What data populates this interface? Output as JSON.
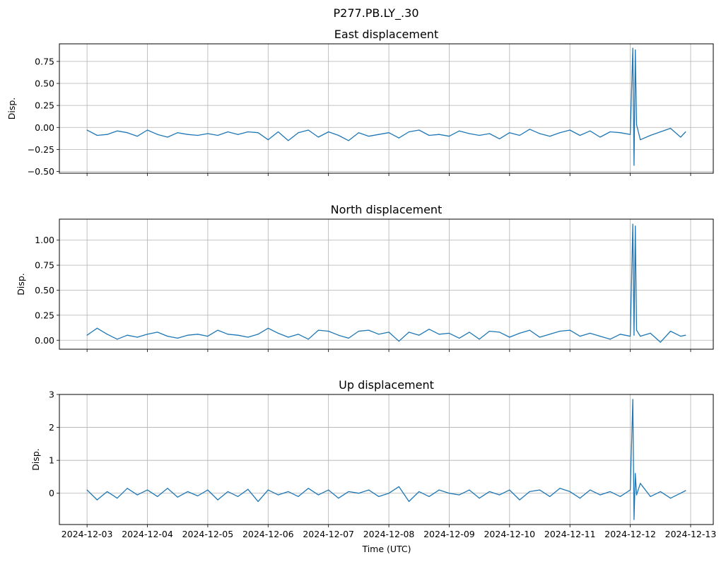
{
  "figure": {
    "suptitle": "P277.PB.LY_.30",
    "xlabel": "Time (UTC)"
  },
  "colors": {
    "line": "#1f77b4",
    "grid": "#b0b0b0",
    "axes": "#000000"
  },
  "chart_data": [
    {
      "type": "line",
      "title": "East displacement",
      "ylabel": "Disp.",
      "xlim": [
        "2024-12-02T13:00",
        "2024-12-13T09:00"
      ],
      "ylim": [
        -0.52,
        0.95
      ],
      "yticks": [
        -0.5,
        -0.25,
        0.0,
        0.25,
        0.5,
        0.75
      ],
      "ytick_labels": [
        "−0.50",
        "−0.25",
        "0.00",
        "0.25",
        "0.50",
        "0.75"
      ],
      "grid": true,
      "series": [
        {
          "x": [
            "2024-12-03T00:00",
            "2024-12-03T04:00",
            "2024-12-03T08:00",
            "2024-12-03T12:00",
            "2024-12-03T16:00",
            "2024-12-03T20:00",
            "2024-12-04T00:00",
            "2024-12-04T04:00",
            "2024-12-04T08:00",
            "2024-12-04T12:00",
            "2024-12-04T16:00",
            "2024-12-04T20:00",
            "2024-12-05T00:00",
            "2024-12-05T04:00",
            "2024-12-05T08:00",
            "2024-12-05T12:00",
            "2024-12-05T16:00",
            "2024-12-05T20:00",
            "2024-12-06T00:00",
            "2024-12-06T04:00",
            "2024-12-06T08:00",
            "2024-12-06T12:00",
            "2024-12-06T16:00",
            "2024-12-06T20:00",
            "2024-12-07T00:00",
            "2024-12-07T04:00",
            "2024-12-07T08:00",
            "2024-12-07T12:00",
            "2024-12-07T16:00",
            "2024-12-07T20:00",
            "2024-12-08T00:00",
            "2024-12-08T04:00",
            "2024-12-08T08:00",
            "2024-12-08T12:00",
            "2024-12-08T16:00",
            "2024-12-08T20:00",
            "2024-12-09T00:00",
            "2024-12-09T04:00",
            "2024-12-09T08:00",
            "2024-12-09T12:00",
            "2024-12-09T16:00",
            "2024-12-09T20:00",
            "2024-12-10T00:00",
            "2024-12-10T04:00",
            "2024-12-10T08:00",
            "2024-12-10T12:00",
            "2024-12-10T16:00",
            "2024-12-10T20:00",
            "2024-12-11T00:00",
            "2024-12-11T04:00",
            "2024-12-11T08:00",
            "2024-12-11T12:00",
            "2024-12-11T16:00",
            "2024-12-11T20:00",
            "2024-12-12T00:00",
            "2024-12-12T01:00",
            "2024-12-12T01:30",
            "2024-12-12T02:00",
            "2024-12-12T02:30",
            "2024-12-12T04:00",
            "2024-12-12T08:00",
            "2024-12-12T12:00",
            "2024-12-12T16:00",
            "2024-12-12T20:00",
            "2024-12-12T22:00"
          ],
          "y": [
            -0.03,
            -0.09,
            -0.08,
            -0.04,
            -0.06,
            -0.1,
            -0.03,
            -0.08,
            -0.11,
            -0.06,
            -0.08,
            -0.09,
            -0.07,
            -0.09,
            -0.05,
            -0.08,
            -0.05,
            -0.06,
            -0.14,
            -0.05,
            -0.15,
            -0.06,
            -0.03,
            -0.11,
            -0.05,
            -0.09,
            -0.15,
            -0.06,
            -0.1,
            -0.08,
            -0.06,
            -0.12,
            -0.05,
            -0.03,
            -0.09,
            -0.08,
            -0.1,
            -0.04,
            -0.07,
            -0.09,
            -0.07,
            -0.13,
            -0.06,
            -0.09,
            -0.02,
            -0.07,
            -0.1,
            -0.06,
            -0.03,
            -0.09,
            -0.04,
            -0.11,
            -0.05,
            -0.06,
            -0.08,
            0.9,
            -0.43,
            0.88,
            0.03,
            -0.14,
            -0.09,
            -0.05,
            -0.01,
            -0.11,
            -0.05
          ]
        }
      ]
    },
    {
      "type": "line",
      "title": "North displacement",
      "ylabel": "Disp.",
      "xlim": [
        "2024-12-02T13:00",
        "2024-12-13T09:00"
      ],
      "ylim": [
        -0.09,
        1.21
      ],
      "yticks": [
        0.0,
        0.25,
        0.5,
        0.75,
        1.0
      ],
      "ytick_labels": [
        "0.00",
        "0.25",
        "0.50",
        "0.75",
        "1.00"
      ],
      "grid": true,
      "series": [
        {
          "x": [
            "2024-12-03T00:00",
            "2024-12-03T04:00",
            "2024-12-03T08:00",
            "2024-12-03T12:00",
            "2024-12-03T16:00",
            "2024-12-03T20:00",
            "2024-12-04T00:00",
            "2024-12-04T04:00",
            "2024-12-04T08:00",
            "2024-12-04T12:00",
            "2024-12-04T16:00",
            "2024-12-04T20:00",
            "2024-12-05T00:00",
            "2024-12-05T04:00",
            "2024-12-05T08:00",
            "2024-12-05T12:00",
            "2024-12-05T16:00",
            "2024-12-05T20:00",
            "2024-12-06T00:00",
            "2024-12-06T04:00",
            "2024-12-06T08:00",
            "2024-12-06T12:00",
            "2024-12-06T16:00",
            "2024-12-06T20:00",
            "2024-12-07T00:00",
            "2024-12-07T04:00",
            "2024-12-07T08:00",
            "2024-12-07T12:00",
            "2024-12-07T16:00",
            "2024-12-07T20:00",
            "2024-12-08T00:00",
            "2024-12-08T04:00",
            "2024-12-08T08:00",
            "2024-12-08T12:00",
            "2024-12-08T16:00",
            "2024-12-08T20:00",
            "2024-12-09T00:00",
            "2024-12-09T04:00",
            "2024-12-09T08:00",
            "2024-12-09T12:00",
            "2024-12-09T16:00",
            "2024-12-09T20:00",
            "2024-12-10T00:00",
            "2024-12-10T04:00",
            "2024-12-10T08:00",
            "2024-12-10T12:00",
            "2024-12-10T16:00",
            "2024-12-10T20:00",
            "2024-12-11T00:00",
            "2024-12-11T04:00",
            "2024-12-11T08:00",
            "2024-12-11T12:00",
            "2024-12-11T16:00",
            "2024-12-11T20:00",
            "2024-12-12T00:00",
            "2024-12-12T01:00",
            "2024-12-12T01:30",
            "2024-12-12T02:00",
            "2024-12-12T02:30",
            "2024-12-12T04:00",
            "2024-12-12T08:00",
            "2024-12-12T12:00",
            "2024-12-12T16:00",
            "2024-12-12T20:00",
            "2024-12-12T22:00"
          ],
          "y": [
            0.05,
            0.12,
            0.06,
            0.01,
            0.05,
            0.03,
            0.06,
            0.08,
            0.04,
            0.02,
            0.05,
            0.06,
            0.04,
            0.1,
            0.06,
            0.05,
            0.03,
            0.06,
            0.12,
            0.07,
            0.03,
            0.06,
            0.01,
            0.1,
            0.09,
            0.05,
            0.02,
            0.09,
            0.1,
            0.06,
            0.08,
            -0.01,
            0.08,
            0.05,
            0.11,
            0.06,
            0.07,
            0.02,
            0.08,
            0.01,
            0.09,
            0.08,
            0.03,
            0.07,
            0.1,
            0.03,
            0.06,
            0.09,
            0.1,
            0.04,
            0.07,
            0.04,
            0.01,
            0.06,
            0.04,
            1.16,
            0.05,
            1.14,
            0.1,
            0.04,
            0.07,
            -0.02,
            0.09,
            0.04,
            0.05
          ]
        }
      ]
    },
    {
      "type": "line",
      "title": "Up displacement",
      "ylabel": "Disp.",
      "xlim": [
        "2024-12-02T13:00",
        "2024-12-13T09:00"
      ],
      "ylim": [
        -0.95,
        3.0
      ],
      "yticks": [
        0,
        1,
        2,
        3
      ],
      "ytick_labels": [
        "0",
        "1",
        "2",
        "3"
      ],
      "grid": true,
      "series": [
        {
          "x": [
            "2024-12-03T00:00",
            "2024-12-03T04:00",
            "2024-12-03T08:00",
            "2024-12-03T12:00",
            "2024-12-03T16:00",
            "2024-12-03T20:00",
            "2024-12-04T00:00",
            "2024-12-04T04:00",
            "2024-12-04T08:00",
            "2024-12-04T12:00",
            "2024-12-04T16:00",
            "2024-12-04T20:00",
            "2024-12-05T00:00",
            "2024-12-05T04:00",
            "2024-12-05T08:00",
            "2024-12-05T12:00",
            "2024-12-05T16:00",
            "2024-12-05T20:00",
            "2024-12-06T00:00",
            "2024-12-06T04:00",
            "2024-12-06T08:00",
            "2024-12-06T12:00",
            "2024-12-06T16:00",
            "2024-12-06T20:00",
            "2024-12-07T00:00",
            "2024-12-07T04:00",
            "2024-12-07T08:00",
            "2024-12-07T12:00",
            "2024-12-07T16:00",
            "2024-12-07T20:00",
            "2024-12-08T00:00",
            "2024-12-08T04:00",
            "2024-12-08T08:00",
            "2024-12-08T12:00",
            "2024-12-08T16:00",
            "2024-12-08T20:00",
            "2024-12-09T00:00",
            "2024-12-09T04:00",
            "2024-12-09T08:00",
            "2024-12-09T12:00",
            "2024-12-09T16:00",
            "2024-12-09T20:00",
            "2024-12-10T00:00",
            "2024-12-10T04:00",
            "2024-12-10T08:00",
            "2024-12-10T12:00",
            "2024-12-10T16:00",
            "2024-12-10T20:00",
            "2024-12-11T00:00",
            "2024-12-11T04:00",
            "2024-12-11T08:00",
            "2024-12-11T12:00",
            "2024-12-11T16:00",
            "2024-12-11T20:00",
            "2024-12-12T00:00",
            "2024-12-12T01:00",
            "2024-12-12T01:30",
            "2024-12-12T02:00",
            "2024-12-12T02:30",
            "2024-12-12T04:00",
            "2024-12-12T08:00",
            "2024-12-12T12:00",
            "2024-12-12T16:00",
            "2024-12-12T20:00",
            "2024-12-12T22:00"
          ],
          "y": [
            0.1,
            -0.2,
            0.05,
            -0.15,
            0.15,
            -0.05,
            0.1,
            -0.1,
            0.15,
            -0.12,
            0.05,
            -0.08,
            0.1,
            -0.2,
            0.05,
            -0.1,
            0.12,
            -0.25,
            0.1,
            -0.05,
            0.05,
            -0.1,
            0.15,
            -0.05,
            0.1,
            -0.15,
            0.05,
            0.0,
            0.1,
            -0.1,
            0.0,
            0.2,
            -0.25,
            0.05,
            -0.1,
            0.1,
            0.0,
            -0.05,
            0.1,
            -0.15,
            0.05,
            -0.05,
            0.1,
            -0.2,
            0.05,
            0.1,
            -0.1,
            0.15,
            0.05,
            -0.15,
            0.1,
            -0.05,
            0.05,
            -0.1,
            0.1,
            2.85,
            -0.8,
            0.6,
            -0.05,
            0.3,
            -0.1,
            0.05,
            -0.15,
            0.0,
            0.08
          ]
        }
      ]
    }
  ],
  "xaxis": {
    "ticks": [
      "2024-12-03",
      "2024-12-04",
      "2024-12-05",
      "2024-12-06",
      "2024-12-07",
      "2024-12-08",
      "2024-12-09",
      "2024-12-10",
      "2024-12-11",
      "2024-12-12",
      "2024-12-13"
    ]
  }
}
